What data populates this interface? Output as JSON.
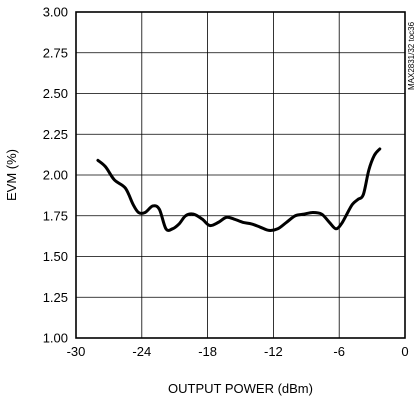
{
  "chart_data": {
    "type": "line",
    "title": "",
    "xlabel": "OUTPUT POWER (dBm)",
    "ylabel": "EVM (%)",
    "side_label": "MAX2831/32 toc36",
    "xlim": [
      -30,
      0
    ],
    "ylim": [
      1.0,
      3.0
    ],
    "xticks": [
      -30,
      -24,
      -18,
      -12,
      -6,
      0
    ],
    "yticks": [
      1.0,
      1.25,
      1.5,
      1.75,
      2.0,
      2.25,
      2.5,
      2.75,
      3.0
    ],
    "xtick_labels": [
      "-30",
      "-24",
      "-18",
      "-12",
      "-6",
      "0"
    ],
    "ytick_labels": [
      "1.00",
      "1.25",
      "1.50",
      "1.75",
      "2.00",
      "2.25",
      "2.50",
      "2.75",
      "3.00"
    ],
    "grid": true,
    "line_color": "#000000",
    "series": [
      {
        "x": [
          -28.0,
          -27.3,
          -26.5,
          -25.5,
          -24.8,
          -24.3,
          -23.7,
          -23.0,
          -22.4,
          -21.8,
          -21.2,
          -20.6,
          -20.0,
          -19.3,
          -18.5,
          -17.8,
          -17.0,
          -16.3,
          -15.6,
          -14.8,
          -14.0,
          -13.2,
          -12.4,
          -11.6,
          -10.8,
          -10.0,
          -9.2,
          -8.4,
          -7.6,
          -6.9,
          -6.3,
          -5.8,
          -5.3,
          -4.8,
          -4.3,
          -3.8,
          -3.3,
          -2.8,
          -2.3
        ],
        "y": [
          2.09,
          2.05,
          1.97,
          1.92,
          1.82,
          1.77,
          1.77,
          1.81,
          1.79,
          1.67,
          1.67,
          1.7,
          1.75,
          1.76,
          1.73,
          1.69,
          1.71,
          1.74,
          1.73,
          1.71,
          1.7,
          1.68,
          1.66,
          1.67,
          1.71,
          1.75,
          1.76,
          1.77,
          1.76,
          1.71,
          1.67,
          1.7,
          1.76,
          1.82,
          1.85,
          1.88,
          2.03,
          2.12,
          2.16
        ]
      }
    ]
  }
}
